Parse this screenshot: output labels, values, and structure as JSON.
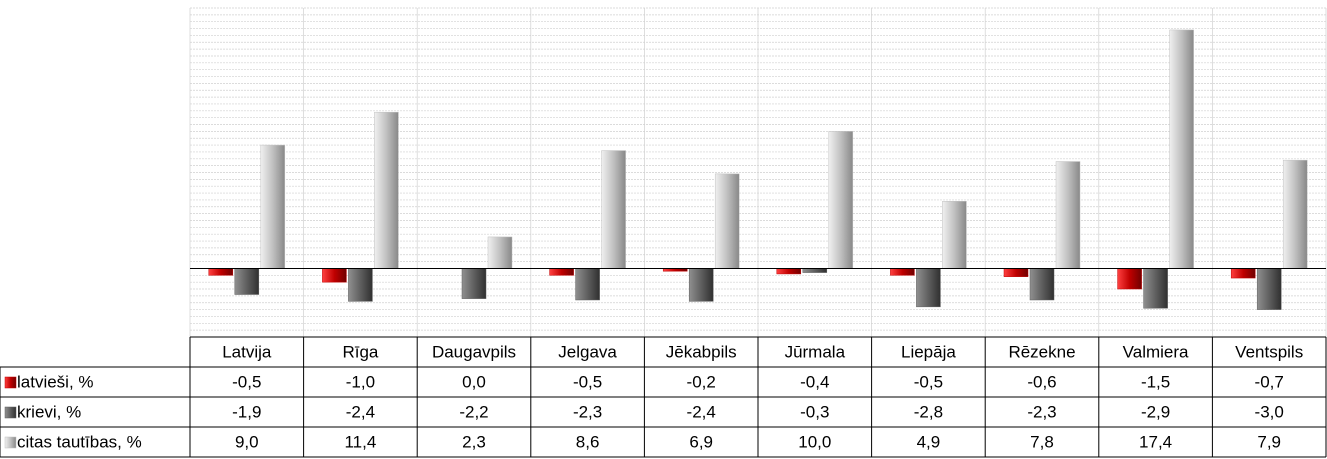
{
  "chart_data": {
    "type": "bar",
    "categories": [
      "Latvija",
      "Rīga",
      "Daugavpils",
      "Jelgava",
      "Jēkabpils",
      "Jūrmala",
      "Liepāja",
      "Rēzekne",
      "Valmiera",
      "Ventspils"
    ],
    "series": [
      {
        "name": "latvieši, %",
        "color": "#c00000",
        "values": [
          -0.5,
          -1.0,
          0.0,
          -0.5,
          -0.2,
          -0.4,
          -0.5,
          -0.6,
          -1.5,
          -0.7
        ],
        "value_labels": [
          "-0,5",
          "-1,0",
          "0,0",
          "-0,5",
          "-0,2",
          "-0,4",
          "-0,5",
          "-0,6",
          "-1,5",
          "-0,7"
        ]
      },
      {
        "name": "krievi, %",
        "color": "#5f5f5f",
        "values": [
          -1.9,
          -2.4,
          -2.2,
          -2.3,
          -2.4,
          -0.3,
          -2.8,
          -2.3,
          -2.9,
          -3.0
        ],
        "value_labels": [
          "-1,9",
          "-2,4",
          "-2,2",
          "-2,3",
          "-2,4",
          "-0,3",
          "-2,8",
          "-2,3",
          "-2,9",
          "-3,0"
        ]
      },
      {
        "name": "citas tautības, %",
        "color": "#c0c0c0",
        "values": [
          9.0,
          11.4,
          2.3,
          8.6,
          6.9,
          10.0,
          4.9,
          7.8,
          17.4,
          7.9
        ],
        "value_labels": [
          "9,0",
          "11,4",
          "2,3",
          "8,6",
          "6,9",
          "10,0",
          "4,9",
          "7,8",
          "17,4",
          "7,9"
        ]
      }
    ],
    "ylim": [
      -5,
      19
    ],
    "grid": true
  }
}
